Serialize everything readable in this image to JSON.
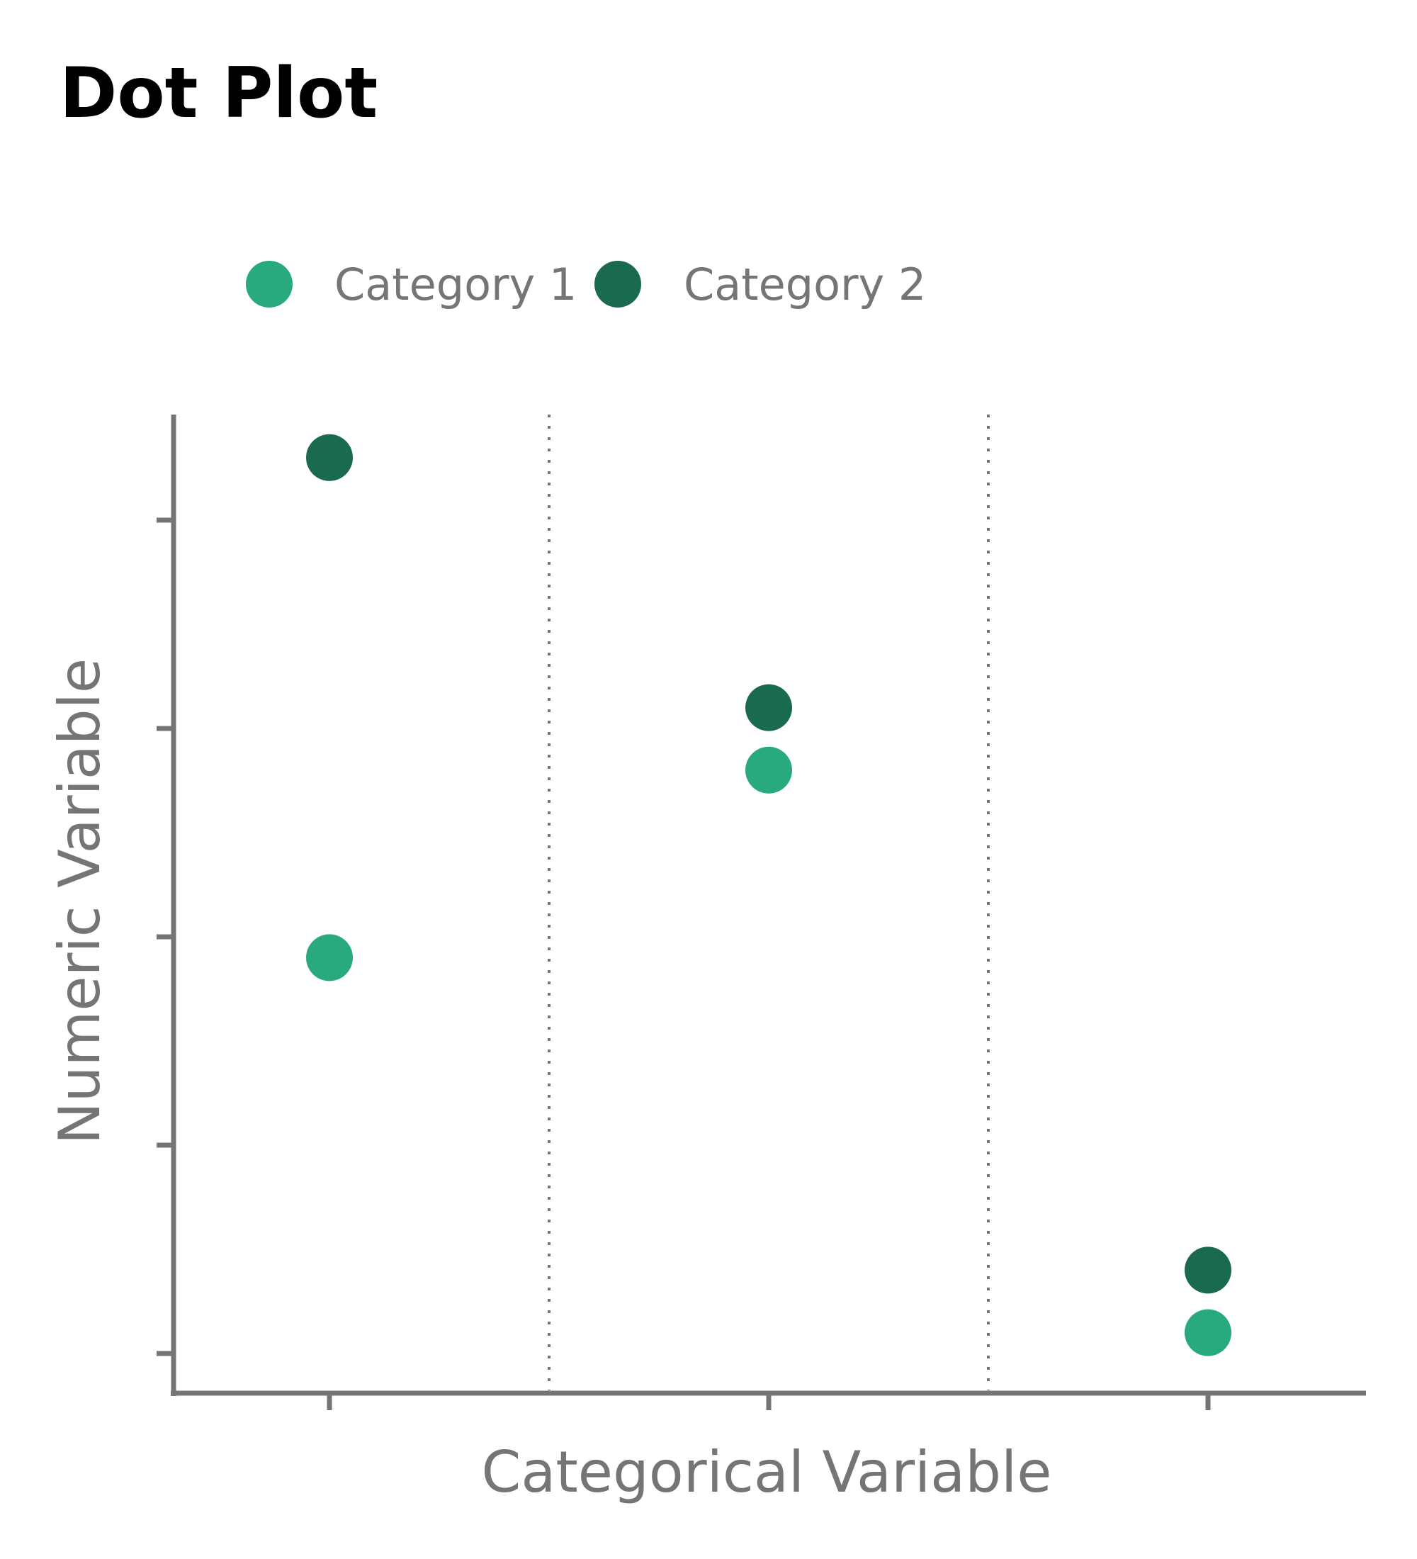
{
  "chart_data": {
    "type": "scatter",
    "title": "Dot Plot",
    "xlabel": "Categorical Variable",
    "ylabel": "Numeric Variable",
    "categories": [
      "",
      "",
      ""
    ],
    "x_tick_labels_visible": false,
    "y_tick_labels_visible": false,
    "ylim": [
      0.5,
      5.2
    ],
    "y_ticks": [
      1,
      2,
      3,
      4,
      5
    ],
    "grid": false,
    "category_separators": "dotted",
    "legend": "top",
    "series": [
      {
        "name": "Category 1",
        "color": "#29a97e",
        "values": [
          2.9,
          3.8,
          1.1
        ]
      },
      {
        "name": "Category 2",
        "color": "#1a6a50",
        "values": [
          5.3,
          4.1,
          1.4
        ]
      }
    ],
    "colors": {
      "axis": "#757575",
      "separator": "#757575",
      "title": "#000000"
    }
  }
}
